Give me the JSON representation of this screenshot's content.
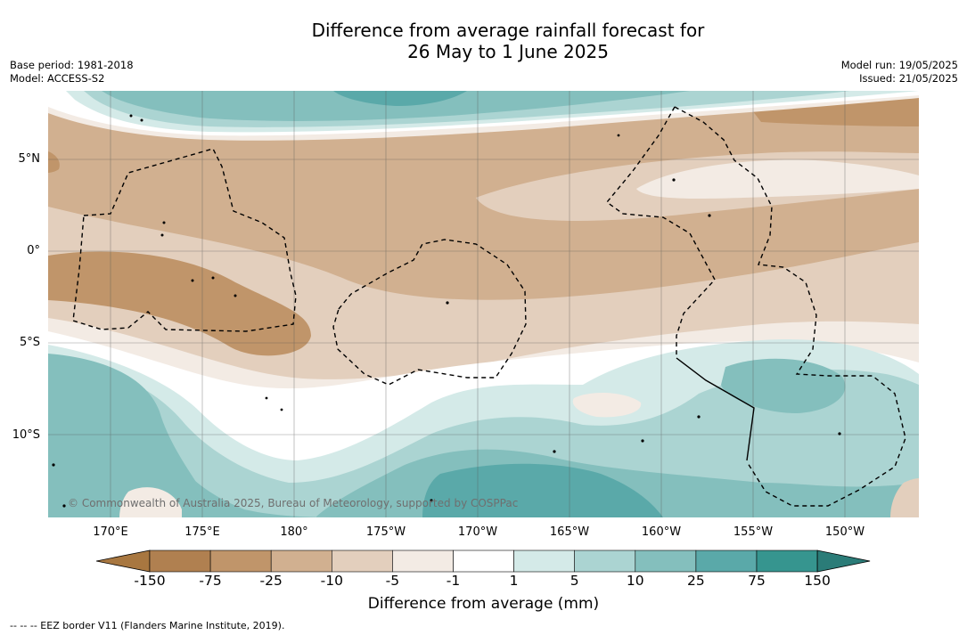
{
  "title": {
    "line1": "Difference from average rainfall forecast for",
    "line2": "26 May to 1 June 2025"
  },
  "meta": {
    "base_period": "Base period: 1981-2018",
    "model": "Model: ACCESS-S2",
    "model_run": "Model run: 19/05/2025",
    "issued": "Issued: 21/05/2025"
  },
  "copyright": "© Commonwealth of Australia 2025, Bureau of Meteorology, supported by COSPPac",
  "axes": {
    "lat_labels": [
      "5°N",
      "0°",
      "5°S",
      "10°S"
    ],
    "lon_labels": [
      "170°E",
      "175°E",
      "180°",
      "175°W",
      "170°W",
      "165°W",
      "160°W",
      "155°W",
      "150°W"
    ]
  },
  "colorbar": {
    "label": "Difference from average (mm)",
    "ticks": [
      "-150",
      "-75",
      "-25",
      "-10",
      "-5",
      "-1",
      "1",
      "5",
      "10",
      "25",
      "75",
      "150"
    ],
    "colors": [
      "#a87740",
      "#b08050",
      "#c0956a",
      "#d1b090",
      "#e3cfbd",
      "#f3ebe4",
      "#ffffff",
      "#d4eae8",
      "#abd4d2",
      "#84bfbd",
      "#5aa9a9",
      "#36958f",
      "#2b7c78"
    ]
  },
  "footer": "--  --  -- EEZ border V11 (Flanders Marine Institute, 2019)."
}
